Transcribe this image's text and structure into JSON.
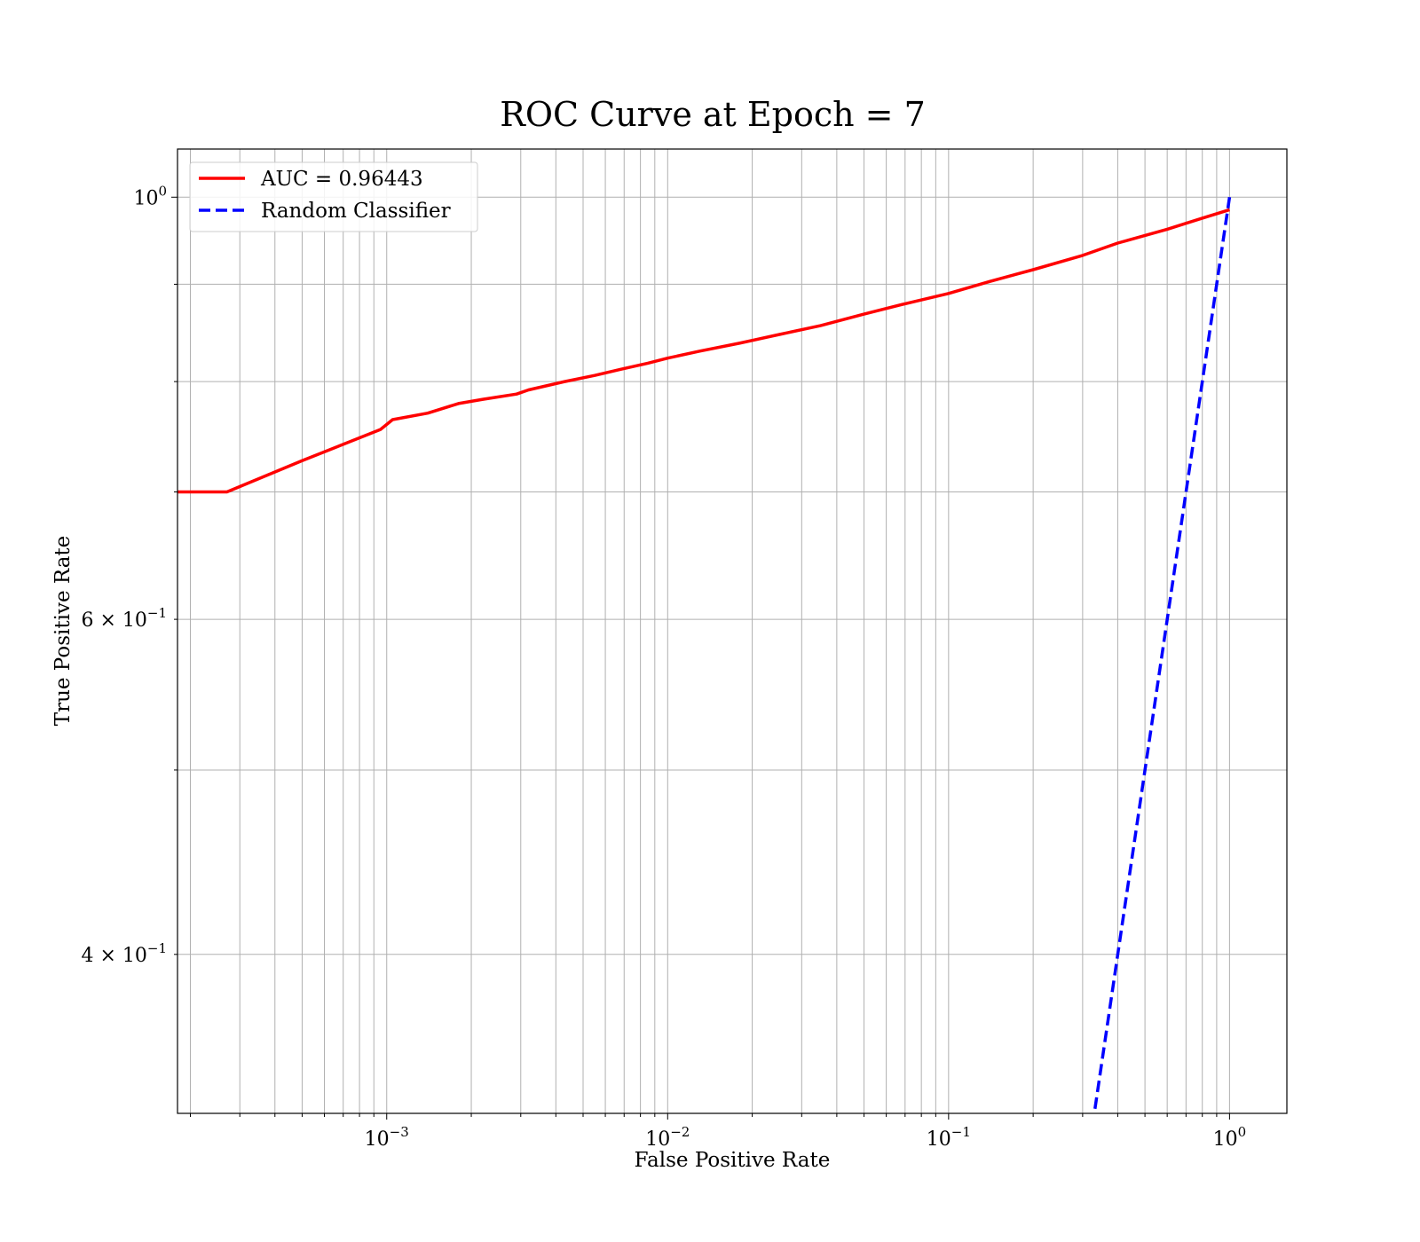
{
  "chart_data": {
    "type": "line",
    "title": "ROC Curve at Epoch = 7",
    "xlabel": "False Positive Rate",
    "ylabel": "True Positive Rate",
    "xscale": "log",
    "yscale": "log",
    "xlim": [
      0.00018,
      1.6
    ],
    "ylim": [
      0.33,
      1.06
    ],
    "grid": "major-and-minor",
    "legend": "top-left",
    "x_ticks": [
      {
        "base": "10",
        "exp": "−3",
        "value": 0.001
      },
      {
        "base": "10",
        "exp": "−2",
        "value": 0.01
      },
      {
        "base": "10",
        "exp": "−1",
        "value": 0.1
      },
      {
        "base": "10",
        "exp": "0",
        "value": 1
      }
    ],
    "y_ticks": [
      {
        "base": "10",
        "exp": "0",
        "value": 1.0,
        "prefix": ""
      },
      {
        "base": "10",
        "exp": "−1",
        "value": 0.6,
        "prefix": "6 × "
      },
      {
        "base": "10",
        "exp": "−1",
        "value": 0.4,
        "prefix": "4 × "
      }
    ],
    "series": [
      {
        "name": "AUC = 0.96443",
        "color": "#ff0000",
        "style": "solid",
        "x": [
          0.00018,
          0.00027,
          0.0005,
          0.00095,
          0.00105,
          0.0014,
          0.0018,
          0.0022,
          0.0029,
          0.0032,
          0.0043,
          0.0055,
          0.0068,
          0.0085,
          0.01,
          0.013,
          0.018,
          0.025,
          0.035,
          0.05,
          0.07,
          0.1,
          0.14,
          0.2,
          0.3,
          0.4,
          0.6,
          0.8,
          1.0
        ],
        "y": [
          0.7,
          0.7,
          0.727,
          0.755,
          0.764,
          0.77,
          0.779,
          0.783,
          0.788,
          0.792,
          0.8,
          0.806,
          0.812,
          0.818,
          0.823,
          0.83,
          0.838,
          0.847,
          0.856,
          0.868,
          0.879,
          0.89,
          0.903,
          0.916,
          0.932,
          0.946,
          0.962,
          0.975,
          0.985
        ]
      },
      {
        "name": "Random Classifier",
        "color": "#0000ff",
        "style": "dashed",
        "x": [
          0.3,
          1.0
        ],
        "y": [
          0.3,
          1.0
        ]
      }
    ]
  }
}
